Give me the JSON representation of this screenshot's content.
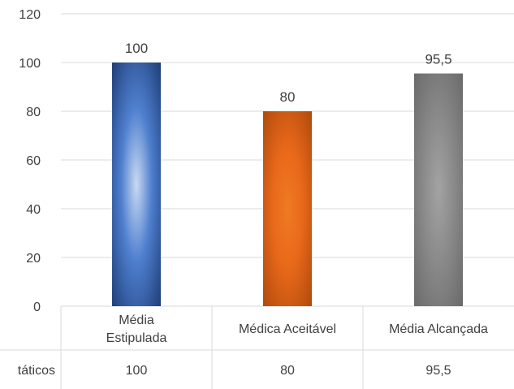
{
  "chart_data": {
    "type": "bar",
    "title": "",
    "xlabel": "",
    "ylabel": "",
    "ylim": [
      0,
      120
    ],
    "yticks": [
      0,
      20,
      40,
      60,
      80,
      100,
      120
    ],
    "grid": true,
    "categories": [
      {
        "lines": [
          "Média",
          "Estipulada"
        ]
      },
      {
        "lines": [
          "Médica Aceitável"
        ]
      },
      {
        "lines": [
          "Média Alcançada"
        ]
      }
    ],
    "values": [
      100,
      80,
      95.5
    ],
    "value_labels": [
      "100",
      "80",
      "95,5"
    ],
    "series": [
      {
        "name": "Dados Estatáticos",
        "values": [
          100,
          80,
          95.5
        ],
        "table_labels": [
          "100",
          "80",
          "95,5"
        ]
      }
    ],
    "table_row_label": "táticos",
    "bar_colors": [
      {
        "center": "#c9d9f2",
        "mid": "#4f7fcf",
        "edge": "#1f3f78"
      },
      {
        "center": "#f07a22",
        "mid": "#e8681a",
        "edge": "#b04a0c"
      },
      {
        "center": "#a3a3a3",
        "mid": "#8a8a8a",
        "edge": "#6a6a6a"
      }
    ],
    "grid_color": "#d9d9d9",
    "text_color": "#404040"
  }
}
